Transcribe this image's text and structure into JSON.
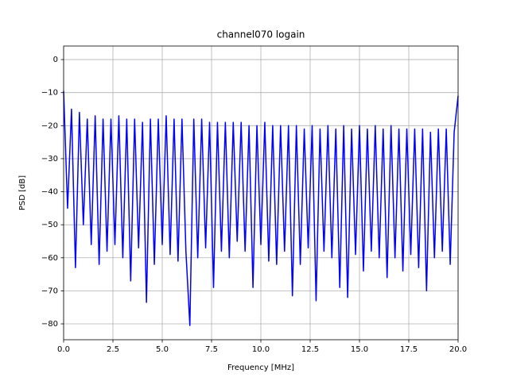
{
  "chart_data": {
    "type": "line",
    "title": "channel070 logain",
    "xlabel": "Frequency [MHz]",
    "ylabel": "PSD [dB]",
    "color": "#0000ff",
    "grid": true,
    "xlim": [
      0,
      20
    ],
    "ylim": [
      -84.8,
      4.1
    ],
    "xticks": [
      {
        "value": 0,
        "label": "0.0"
      },
      2.5,
      {
        "value": 5,
        "label": "5.0"
      },
      7.5,
      {
        "value": 10,
        "label": "10.0"
      },
      12.5,
      {
        "value": 15,
        "label": "15.0"
      },
      17.5,
      {
        "value": 20,
        "label": "20.0"
      }
    ],
    "yticks": [
      {
        "value": -80,
        "label": "−80"
      },
      {
        "value": -70,
        "label": "−70"
      },
      {
        "value": -60,
        "label": "−60"
      },
      {
        "value": -50,
        "label": "−50"
      },
      {
        "value": -40,
        "label": "−40"
      },
      {
        "value": -30,
        "label": "−30"
      },
      {
        "value": -20,
        "label": "−20"
      },
      {
        "value": -10,
        "label": "−10"
      },
      0
    ],
    "x": [
      0,
      0.2,
      0.4,
      0.6,
      0.8,
      1.0,
      1.2,
      1.4,
      1.6,
      1.8,
      2.0,
      2.2,
      2.4,
      2.6,
      2.8,
      3.0,
      3.2,
      3.4,
      3.6,
      3.8,
      4.0,
      4.2,
      4.4,
      4.6,
      4.8,
      5.0,
      5.2,
      5.4,
      5.6,
      5.8,
      6.0,
      6.2,
      6.4,
      6.6,
      6.8,
      7.0,
      7.2,
      7.4,
      7.6,
      7.8,
      8.0,
      8.2,
      8.4,
      8.6,
      8.8,
      9.0,
      9.2,
      9.4,
      9.6,
      9.8,
      10.0,
      10.2,
      10.4,
      10.6,
      10.8,
      11.0,
      11.2,
      11.4,
      11.6,
      11.8,
      12.0,
      12.2,
      12.4,
      12.6,
      12.8,
      13.0,
      13.2,
      13.4,
      13.6,
      13.8,
      14.0,
      14.2,
      14.4,
      14.6,
      14.8,
      15.0,
      15.2,
      15.4,
      15.6,
      15.8,
      16.0,
      16.2,
      16.4,
      16.6,
      16.8,
      17.0,
      17.2,
      17.4,
      17.6,
      17.8,
      18.0,
      18.2,
      18.4,
      18.6,
      18.8,
      19.0,
      19.2,
      19.4,
      19.6,
      19.8,
      20.0
    ],
    "values": [
      -9.5,
      -45,
      -15,
      -63,
      -16,
      -50,
      -18,
      -56,
      -17,
      -62,
      -18,
      -58,
      -18,
      -56,
      -17,
      -60,
      -18,
      -67,
      -18,
      -57,
      -19,
      -73.5,
      -18,
      -62,
      -18,
      -56,
      -17,
      -59,
      -18,
      -61,
      -18,
      -58,
      -80.5,
      -18,
      -60,
      -18,
      -57,
      -19,
      -69,
      -19,
      -58,
      -19,
      -60,
      -19,
      -55,
      -19,
      -58,
      -20,
      -69,
      -20,
      -56,
      -19,
      -61,
      -20,
      -62,
      -20,
      -58,
      -20,
      -71.5,
      -20,
      -62,
      -21,
      -57,
      -20,
      -73,
      -21,
      -58,
      -20,
      -60,
      -21,
      -69,
      -20,
      -72,
      -21,
      -59,
      -20,
      -64,
      -21,
      -58,
      -20,
      -60,
      -21,
      -66,
      -20,
      -60,
      -21,
      -64,
      -21,
      -59,
      -21,
      -63,
      -21,
      -70,
      -22,
      -60,
      -21,
      -58,
      -21,
      -62,
      -22,
      -11
    ]
  }
}
